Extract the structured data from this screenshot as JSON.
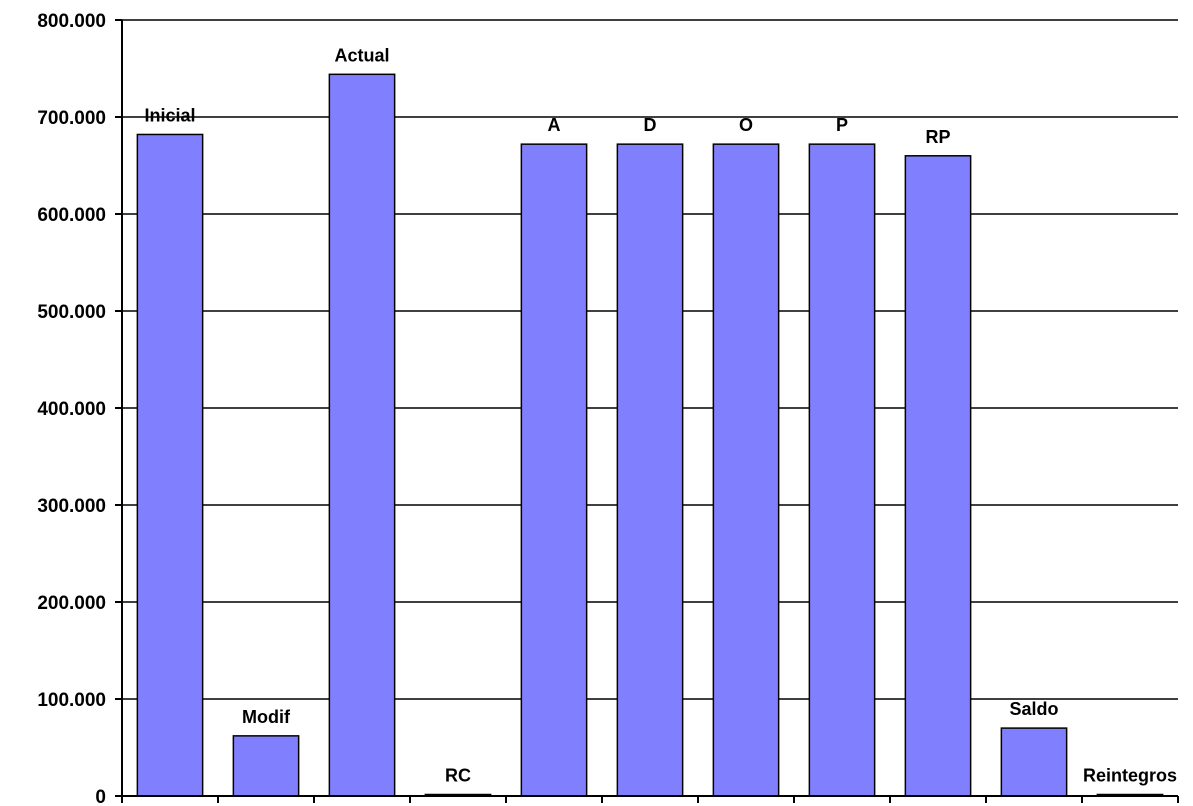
{
  "chart_data": {
    "type": "bar",
    "categories": [
      "Inicial",
      "Modif",
      "Actual",
      "RC",
      "A",
      "D",
      "O",
      "P",
      "RP",
      "Saldo",
      "Reintegros"
    ],
    "values": [
      682000,
      62000,
      744000,
      1000,
      672000,
      672000,
      672000,
      672000,
      660000,
      70000,
      1000
    ],
    "data_labels": [
      "Inicial",
      "Modif",
      "Actual",
      "RC",
      "A",
      "D",
      "O",
      "P",
      "RP",
      "Saldo",
      "Reintegros"
    ],
    "ylim": [
      0,
      800000
    ],
    "yticks": [
      0,
      100000,
      200000,
      300000,
      400000,
      500000,
      600000,
      700000,
      800000
    ],
    "ytick_labels": [
      "0",
      "100.000",
      "200.000",
      "300.000",
      "400.000",
      "500.000",
      "600.000",
      "700.000",
      "800.000"
    ],
    "grid": true,
    "legend": "none",
    "bar_color": "#8080FF",
    "bar_stroke": "#000000"
  }
}
